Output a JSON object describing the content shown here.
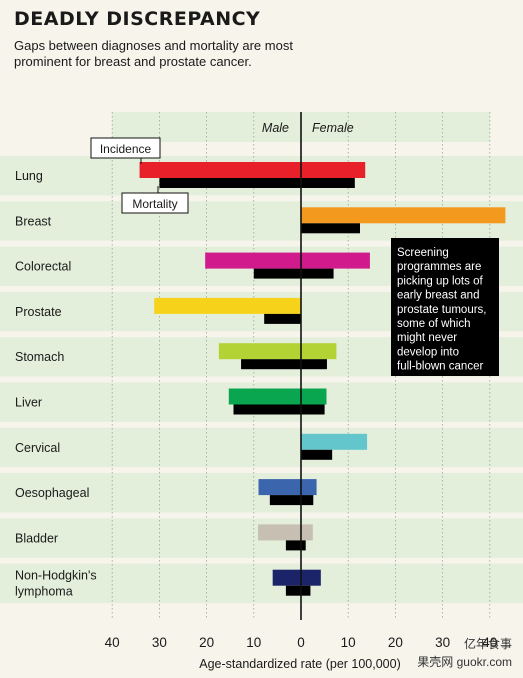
{
  "header": {
    "title": "DEADLY DISCREPANCY",
    "subtitle": "Gaps between diagnoses and mortality are most prominent for breast and prostate cancer."
  },
  "chart_data": {
    "type": "bar",
    "orientation": "horizontal-diverging",
    "xlabel": "Age-standardized rate (per 100,000)",
    "side_labels": {
      "left": "Male",
      "right": "Female"
    },
    "xticks": [
      40,
      30,
      20,
      10,
      0,
      10,
      20,
      30,
      40
    ],
    "xlim": [
      -40,
      40
    ],
    "legend": {
      "incidence": "Incidence",
      "mortality": "Mortality"
    },
    "categories": [
      "Lung",
      "Breast",
      "Colorectal",
      "Prostate",
      "Stomach",
      "Liver",
      "Cervical",
      "Oesophageal",
      "Bladder",
      "Non-Hodgkin's lymphoma"
    ],
    "category_lines": [
      [
        "Lung"
      ],
      [
        "Breast"
      ],
      [
        "Colorectal"
      ],
      [
        "Prostate"
      ],
      [
        "Stomach"
      ],
      [
        "Liver"
      ],
      [
        "Cervical"
      ],
      [
        "Oesophageal"
      ],
      [
        "Bladder"
      ],
      [
        "Non-Hodgkin's",
        "lymphoma"
      ]
    ],
    "colors": [
      "#e8202a",
      "#f39a1e",
      "#d11a8b",
      "#f6d31a",
      "#b3d334",
      "#0aa64f",
      "#63c6cc",
      "#3b65ad",
      "#c7bfb2",
      "#1c2469"
    ],
    "mortality_color": "#000000",
    "series": [
      {
        "name": "Incidence",
        "male": [
          34.2,
          0,
          20.3,
          31.1,
          17.4,
          15.3,
          0,
          9.0,
          9.1,
          6.0
        ],
        "female": [
          13.6,
          43.3,
          14.6,
          0,
          7.5,
          5.4,
          14.0,
          3.3,
          2.5,
          4.2
        ]
      },
      {
        "name": "Mortality",
        "male": [
          30.0,
          0,
          10.0,
          7.8,
          12.7,
          14.3,
          0,
          6.6,
          3.2,
          3.2
        ],
        "female": [
          11.4,
          12.5,
          6.9,
          0,
          5.5,
          5.0,
          6.6,
          2.6,
          1.0,
          2.0
        ]
      }
    ],
    "annotation": "Screening programmes are picking up lots of early breast and prostate tumours, some of which might never develop into full-blown cancer",
    "annotation_lines": [
      "Screening",
      "programmes are",
      "picking up lots of",
      "early breast and",
      "prostate tumours,",
      "some of which",
      "might never",
      "develop into",
      "full-blown cancer"
    ]
  },
  "watermark": {
    "line1": "亿年食事",
    "line2": "果壳网 guokr.com"
  }
}
